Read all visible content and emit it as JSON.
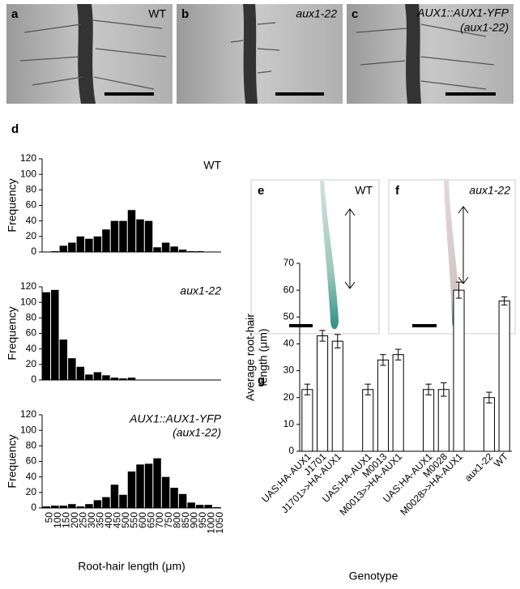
{
  "photos": [
    {
      "label": "a",
      "caption": "WT"
    },
    {
      "label": "b",
      "caption": "aux1-22"
    },
    {
      "label": "c",
      "caption": "AUX1::AUX1-YFP",
      "caption2": "(aux1-22)"
    }
  ],
  "stains": [
    {
      "label": "e",
      "caption": "WT"
    },
    {
      "label": "f",
      "caption": "aux1-22"
    }
  ],
  "chart_data": [
    {
      "type": "bar",
      "panel": "d",
      "title": "WT",
      "ylabel": "Frequency",
      "color": "#000000",
      "values": [
        0,
        1,
        8,
        12,
        20,
        17,
        20,
        29,
        40,
        40,
        54,
        42,
        40,
        6,
        12,
        7,
        3,
        1,
        1,
        0,
        0
      ],
      "ylim": [
        0,
        120
      ],
      "yticks": [
        0,
        20,
        40,
        60,
        80,
        100,
        120
      ]
    },
    {
      "type": "bar",
      "title": "aux1-22",
      "ylabel": "Frequency",
      "color": "#000000",
      "values": [
        113,
        116,
        52,
        28,
        17,
        7,
        10,
        6,
        3,
        2,
        3,
        0,
        0,
        0,
        0,
        0,
        0,
        0,
        0,
        0,
        0
      ],
      "ylim": [
        0,
        120
      ],
      "yticks": [
        0,
        20,
        40,
        60,
        80,
        100,
        120
      ]
    },
    {
      "type": "bar",
      "title": "AUX1::AUX1-YFP",
      "subtitle": "(aux1-22)",
      "ylabel": "Frequency",
      "xlabel": "Root-hair length (μm)",
      "color": "#000000",
      "categories": [
        "50",
        "100",
        "150",
        "200",
        "250",
        "300",
        "350",
        "400",
        "450",
        "500",
        "550",
        "600",
        "650",
        "700",
        "750",
        "800",
        "850",
        "900",
        "950",
        "1000",
        "1050"
      ],
      "values": [
        2,
        3,
        3,
        5,
        2,
        5,
        10,
        14,
        30,
        17,
        47,
        56,
        57,
        64,
        40,
        26,
        18,
        7,
        4,
        4,
        1
      ],
      "ylim": [
        0,
        120
      ],
      "yticks": [
        0,
        20,
        40,
        60,
        80,
        100,
        120
      ]
    },
    {
      "type": "bar",
      "panel": "g",
      "ylabel": [
        "Average root-hair",
        "length (μm)"
      ],
      "xlabel": "Genotype",
      "color": "#ffffff",
      "categories": [
        "UAS:HA-AUX1",
        "J1701",
        "J1701>>HA-AUX1",
        null,
        "UAS:HA-AUX1",
        "M0013",
        "M0013>>HA-AUX1",
        null,
        "UAS:HA-AUX1",
        "M0028",
        "M0028>>HA-AUX1",
        null,
        "aux1-22",
        "WT"
      ],
      "values": [
        23,
        43,
        41,
        null,
        23,
        34,
        36,
        null,
        23,
        23,
        60,
        null,
        20,
        56
      ],
      "errors": [
        2,
        2,
        2.5,
        null,
        2,
        2,
        2,
        null,
        2,
        2.5,
        3,
        null,
        2,
        1.5
      ],
      "ylim": [
        0,
        70
      ],
      "yticks": [
        0,
        10,
        20,
        30,
        40,
        50,
        60,
        70
      ]
    }
  ]
}
